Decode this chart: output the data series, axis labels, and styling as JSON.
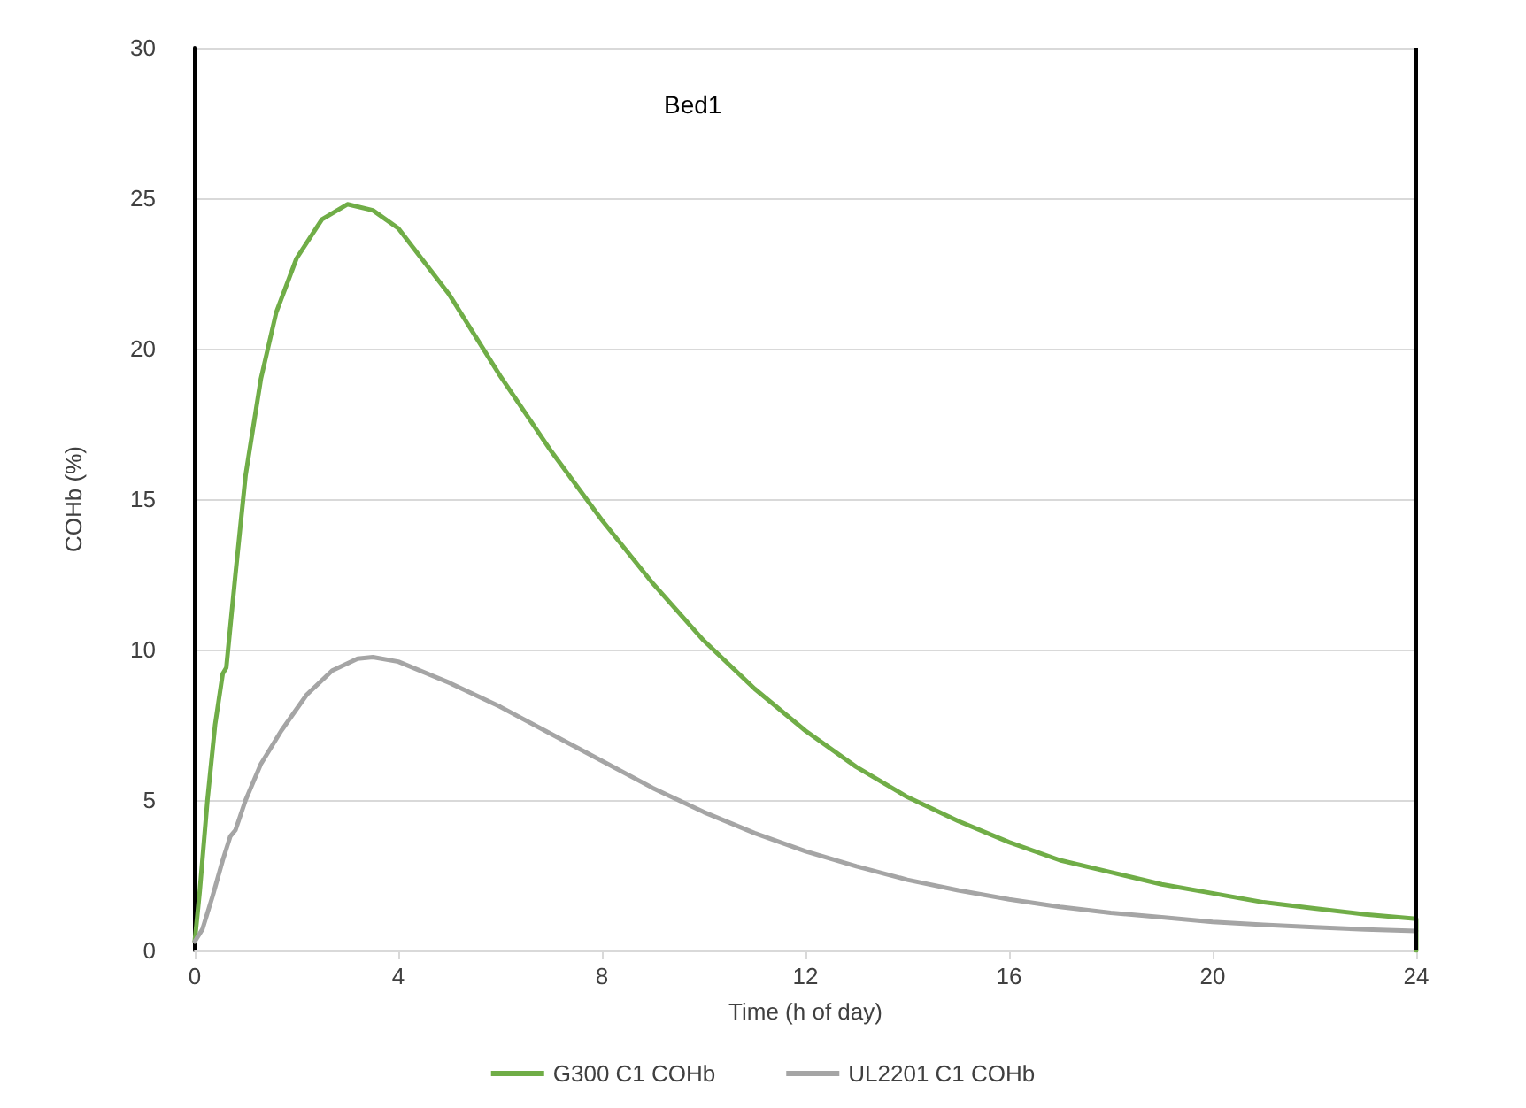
{
  "chart_data": {
    "type": "line",
    "title": "Bed1",
    "xlabel": "Time (h of day)",
    "ylabel": "COHb (%)",
    "xlim": [
      0,
      24
    ],
    "xticks": [
      0,
      4,
      8,
      12,
      16,
      20,
      24
    ],
    "ylim": [
      0,
      30
    ],
    "yticks": [
      0,
      5,
      10,
      15,
      20,
      25,
      30
    ],
    "grid": "y",
    "legend": "bottom",
    "marker": "none",
    "line_style": "solid",
    "ref_lines": [
      {
        "axis": "x",
        "value": 24,
        "color": "#000000"
      }
    ],
    "series": [
      {
        "name": "G300 C1 COHb",
        "color": "#70ad47",
        "x": [
          0,
          0.1,
          0.25,
          0.4,
          0.55,
          0.62,
          0.8,
          1.0,
          1.3,
          1.6,
          2,
          2.5,
          3,
          3.5,
          4,
          5,
          6,
          7,
          8,
          9,
          10,
          11,
          12,
          13,
          14,
          15,
          16,
          17,
          18,
          19,
          20,
          21,
          22,
          23,
          24,
          24
        ],
        "values": [
          0.3,
          2,
          5,
          7.5,
          9.2,
          9.4,
          12.5,
          15.8,
          19,
          21.2,
          23,
          24.3,
          24.8,
          24.6,
          24,
          21.8,
          19.1,
          16.6,
          14.3,
          12.2,
          10.3,
          8.7,
          7.3,
          6.1,
          5.1,
          4.3,
          3.6,
          3.0,
          2.6,
          2.2,
          1.9,
          1.6,
          1.4,
          1.2,
          1.05,
          0
        ]
      },
      {
        "name": "UL2201 C1 COHb",
        "color": "#a5a5a5",
        "x": [
          0,
          0.15,
          0.35,
          0.55,
          0.7,
          0.8,
          1,
          1.3,
          1.7,
          2.2,
          2.7,
          3.2,
          3.5,
          4,
          5,
          6,
          7,
          8,
          9,
          10,
          11,
          12,
          13,
          14,
          15,
          16,
          17,
          18,
          19,
          20,
          21,
          22,
          23,
          24
        ],
        "values": [
          0.3,
          0.7,
          1.8,
          3,
          3.8,
          4,
          5,
          6.2,
          7.3,
          8.5,
          9.3,
          9.7,
          9.75,
          9.6,
          8.9,
          8.1,
          7.2,
          6.3,
          5.4,
          4.6,
          3.9,
          3.3,
          2.8,
          2.35,
          2.0,
          1.7,
          1.45,
          1.25,
          1.1,
          0.95,
          0.85,
          0.77,
          0.7,
          0.65
        ]
      }
    ]
  }
}
